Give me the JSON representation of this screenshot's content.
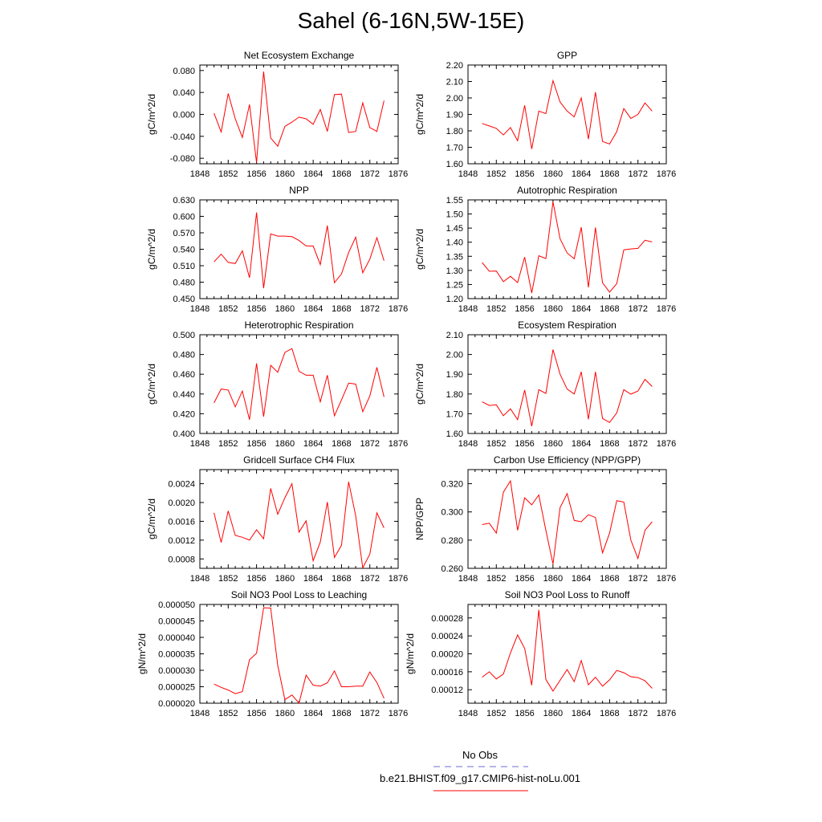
{
  "title": "Sahel (6-16N,5W-15E)",
  "legend": {
    "items": [
      {
        "label": "No Obs",
        "color": "#6b6bd6",
        "dash": "8,6"
      },
      {
        "label": "b.e21.BHIST.f09_g17.CMIP6-hist-noLu.001",
        "color": "#ff0000",
        "dash": ""
      }
    ]
  },
  "chart_data": [
    {
      "type": "line",
      "title": "Net Ecosystem Exchange",
      "ylabel": "gC/m^2/d",
      "xlim": [
        1848,
        1876
      ],
      "xticks": [
        "1848",
        "1852",
        "1856",
        "1860",
        "1864",
        "1868",
        "1872",
        "1876"
      ],
      "ylim": [
        -0.09,
        0.09
      ],
      "yticks": [
        "0.080",
        "0.040",
        "0.000",
        "-0.040",
        "-0.080"
      ],
      "ytick_values": [
        0.08,
        0.04,
        0.0,
        -0.04,
        -0.08
      ],
      "x": [
        1850,
        1851,
        1852,
        1853,
        1854,
        1855,
        1856,
        1857,
        1858,
        1859,
        1860,
        1861,
        1862,
        1863,
        1864,
        1865,
        1866,
        1867,
        1868,
        1869,
        1870,
        1871,
        1872,
        1873,
        1874
      ],
      "series": [
        {
          "color": "#ff0000",
          "values": [
            0.002,
            -0.032,
            0.038,
            -0.008,
            -0.042,
            0.018,
            -0.088,
            0.078,
            -0.043,
            -0.058,
            -0.022,
            -0.014,
            -0.005,
            -0.008,
            -0.018,
            0.009,
            -0.031,
            0.036,
            0.037,
            -0.033,
            -0.031,
            0.021,
            -0.024,
            -0.031,
            0.025
          ]
        }
      ]
    },
    {
      "type": "line",
      "title": "GPP",
      "ylabel": "gC/m^2/d",
      "xlim": [
        1848,
        1876
      ],
      "xticks": [
        "1848",
        "1852",
        "1856",
        "1860",
        "1864",
        "1868",
        "1872",
        "1876"
      ],
      "ylim": [
        1.6,
        2.2
      ],
      "yticks": [
        "2.20",
        "2.10",
        "2.00",
        "1.90",
        "1.80",
        "1.70",
        "1.60"
      ],
      "ytick_values": [
        2.2,
        2.1,
        2.0,
        1.9,
        1.8,
        1.7,
        1.6
      ],
      "x": [
        1850,
        1851,
        1852,
        1853,
        1854,
        1855,
        1856,
        1857,
        1858,
        1859,
        1860,
        1861,
        1862,
        1863,
        1864,
        1865,
        1866,
        1867,
        1868,
        1869,
        1870,
        1871,
        1872,
        1873,
        1874
      ],
      "series": [
        {
          "color": "#ff0000",
          "values": [
            1.845,
            1.83,
            1.815,
            1.775,
            1.82,
            1.74,
            1.955,
            1.69,
            1.92,
            1.905,
            2.105,
            1.975,
            1.92,
            1.885,
            2.0,
            1.75,
            2.035,
            1.735,
            1.72,
            1.795,
            1.935,
            1.875,
            1.9,
            1.97,
            1.92
          ]
        }
      ]
    },
    {
      "type": "line",
      "title": "NPP",
      "ylabel": "gC/m^2/d",
      "xlim": [
        1848,
        1876
      ],
      "xticks": [
        "1848",
        "1852",
        "1856",
        "1860",
        "1864",
        "1868",
        "1872",
        "1876"
      ],
      "ylim": [
        0.45,
        0.63
      ],
      "yticks": [
        "0.630",
        "0.600",
        "0.570",
        "0.540",
        "0.510",
        "0.480",
        "0.450"
      ],
      "ytick_values": [
        0.63,
        0.6,
        0.57,
        0.54,
        0.51,
        0.48,
        0.45
      ],
      "x": [
        1850,
        1851,
        1852,
        1853,
        1854,
        1855,
        1856,
        1857,
        1858,
        1859,
        1860,
        1861,
        1862,
        1863,
        1864,
        1865,
        1866,
        1867,
        1868,
        1869,
        1870,
        1871,
        1872,
        1873,
        1874
      ],
      "series": [
        {
          "color": "#ff0000",
          "values": [
            0.517,
            0.531,
            0.516,
            0.514,
            0.537,
            0.488,
            0.607,
            0.469,
            0.568,
            0.564,
            0.564,
            0.563,
            0.556,
            0.546,
            0.546,
            0.512,
            0.583,
            0.479,
            0.495,
            0.534,
            0.562,
            0.497,
            0.522,
            0.561,
            0.519
          ]
        }
      ]
    },
    {
      "type": "line",
      "title": "Autotrophic Respiration",
      "ylabel": "gC/m^2/d",
      "xlim": [
        1848,
        1876
      ],
      "xticks": [
        "1848",
        "1852",
        "1856",
        "1860",
        "1864",
        "1868",
        "1872",
        "1876"
      ],
      "ylim": [
        1.2,
        1.55
      ],
      "yticks": [
        "1.55",
        "1.50",
        "1.45",
        "1.40",
        "1.35",
        "1.30",
        "1.25",
        "1.20"
      ],
      "ytick_values": [
        1.55,
        1.5,
        1.45,
        1.4,
        1.35,
        1.3,
        1.25,
        1.2
      ],
      "x": [
        1850,
        1851,
        1852,
        1853,
        1854,
        1855,
        1856,
        1857,
        1858,
        1859,
        1860,
        1861,
        1862,
        1863,
        1864,
        1865,
        1866,
        1867,
        1868,
        1869,
        1870,
        1871,
        1872,
        1873,
        1874
      ],
      "series": [
        {
          "color": "#ff0000",
          "values": [
            1.328,
            1.297,
            1.298,
            1.26,
            1.279,
            1.257,
            1.347,
            1.22,
            1.352,
            1.342,
            1.543,
            1.412,
            1.362,
            1.341,
            1.453,
            1.24,
            1.452,
            1.256,
            1.223,
            1.253,
            1.373,
            1.376,
            1.378,
            1.407,
            1.401
          ]
        }
      ]
    },
    {
      "type": "line",
      "title": "Heterotrophic Respiration",
      "ylabel": "gC/m^2/d",
      "xlim": [
        1848,
        1876
      ],
      "xticks": [
        "1848",
        "1852",
        "1856",
        "1860",
        "1864",
        "1868",
        "1872",
        "1876"
      ],
      "ylim": [
        0.4,
        0.5
      ],
      "yticks": [
        "0.500",
        "0.480",
        "0.460",
        "0.440",
        "0.420",
        "0.400"
      ],
      "ytick_values": [
        0.5,
        0.48,
        0.46,
        0.44,
        0.42,
        0.4
      ],
      "x": [
        1850,
        1851,
        1852,
        1853,
        1854,
        1855,
        1856,
        1857,
        1858,
        1859,
        1860,
        1861,
        1862,
        1863,
        1864,
        1865,
        1866,
        1867,
        1868,
        1869,
        1870,
        1871,
        1872,
        1873,
        1874
      ],
      "series": [
        {
          "color": "#ff0000",
          "values": [
            0.431,
            0.445,
            0.444,
            0.427,
            0.443,
            0.414,
            0.471,
            0.417,
            0.469,
            0.462,
            0.482,
            0.486,
            0.463,
            0.459,
            0.459,
            0.432,
            0.459,
            0.418,
            0.434,
            0.451,
            0.45,
            0.422,
            0.438,
            0.467,
            0.437
          ]
        }
      ]
    },
    {
      "type": "line",
      "title": "Ecosystem Respiration",
      "ylabel": "gC/m^2/d",
      "xlim": [
        1848,
        1876
      ],
      "xticks": [
        "1848",
        "1852",
        "1856",
        "1860",
        "1864",
        "1868",
        "1872",
        "1876"
      ],
      "ylim": [
        1.6,
        2.1
      ],
      "yticks": [
        "2.10",
        "2.00",
        "1.90",
        "1.80",
        "1.70",
        "1.60"
      ],
      "ytick_values": [
        2.1,
        2.0,
        1.9,
        1.8,
        1.7,
        1.6
      ],
      "x": [
        1850,
        1851,
        1852,
        1853,
        1854,
        1855,
        1856,
        1857,
        1858,
        1859,
        1860,
        1861,
        1862,
        1863,
        1864,
        1865,
        1866,
        1867,
        1868,
        1869,
        1870,
        1871,
        1872,
        1873,
        1874
      ],
      "series": [
        {
          "color": "#ff0000",
          "values": [
            1.76,
            1.742,
            1.745,
            1.69,
            1.725,
            1.67,
            1.82,
            1.637,
            1.822,
            1.803,
            2.025,
            1.9,
            1.825,
            1.8,
            1.912,
            1.672,
            1.912,
            1.676,
            1.656,
            1.704,
            1.822,
            1.799,
            1.815,
            1.874,
            1.838
          ]
        }
      ]
    },
    {
      "type": "line",
      "title": "Gridcell Surface CH4 Flux",
      "ylabel": "gC/m^2/d",
      "xlim": [
        1848,
        1876
      ],
      "xticks": [
        "1848",
        "1852",
        "1856",
        "1860",
        "1864",
        "1868",
        "1872",
        "1876"
      ],
      "ylim": [
        0.0006,
        0.0027
      ],
      "yticks": [
        "0.0024",
        "0.0020",
        "0.0016",
        "0.0012",
        "0.0008"
      ],
      "ytick_values": [
        0.0024,
        0.002,
        0.0016,
        0.0012,
        0.0008
      ],
      "x": [
        1850,
        1851,
        1852,
        1853,
        1854,
        1855,
        1856,
        1857,
        1858,
        1859,
        1860,
        1861,
        1862,
        1863,
        1864,
        1865,
        1866,
        1867,
        1868,
        1869,
        1870,
        1871,
        1872,
        1873,
        1874
      ],
      "series": [
        {
          "color": "#ff0000",
          "values": [
            0.00178,
            0.00115,
            0.00182,
            0.0013,
            0.00126,
            0.0012,
            0.00142,
            0.00123,
            0.0023,
            0.00175,
            0.0021,
            0.0024,
            0.00137,
            0.00161,
            0.00076,
            0.00116,
            0.00201,
            0.00083,
            0.00109,
            0.00244,
            0.00172,
            0.00061,
            0.0009,
            0.00178,
            0.00146
          ]
        }
      ]
    },
    {
      "type": "line",
      "title": "Carbon Use Efficiency (NPP/GPP)",
      "ylabel": "NPP/GPP",
      "xlim": [
        1848,
        1876
      ],
      "xticks": [
        "1848",
        "1852",
        "1856",
        "1860",
        "1864",
        "1868",
        "1872",
        "1876"
      ],
      "ylim": [
        0.26,
        0.33
      ],
      "yticks": [
        "0.320",
        "0.300",
        "0.280",
        "0.260"
      ],
      "ytick_values": [
        0.32,
        0.3,
        0.28,
        0.26
      ],
      "x": [
        1850,
        1851,
        1852,
        1853,
        1854,
        1855,
        1856,
        1857,
        1858,
        1859,
        1860,
        1861,
        1862,
        1863,
        1864,
        1865,
        1866,
        1867,
        1868,
        1869,
        1870,
        1871,
        1872,
        1873,
        1874
      ],
      "series": [
        {
          "color": "#ff0000",
          "values": [
            0.291,
            0.292,
            0.285,
            0.314,
            0.322,
            0.287,
            0.31,
            0.305,
            0.312,
            0.287,
            0.263,
            0.303,
            0.313,
            0.294,
            0.293,
            0.298,
            0.296,
            0.271,
            0.285,
            0.308,
            0.307,
            0.28,
            0.267,
            0.287,
            0.293
          ]
        }
      ]
    },
    {
      "type": "line",
      "title": "Soil NO3 Pool Loss to Leaching",
      "ylabel": "gN/m^2/d",
      "xlim": [
        1848,
        1876
      ],
      "xticks": [
        "1848",
        "1852",
        "1856",
        "1860",
        "1864",
        "1868",
        "1872",
        "1876"
      ],
      "ylim": [
        2e-05,
        5e-05
      ],
      "yticks": [
        "0.000050",
        "0.000045",
        "0.000040",
        "0.000035",
        "0.000030",
        "0.000025",
        "0.000020"
      ],
      "ytick_values": [
        5e-05,
        4.5e-05,
        4e-05,
        3.5e-05,
        3e-05,
        2.5e-05,
        2e-05
      ],
      "x": [
        1850,
        1851,
        1852,
        1853,
        1854,
        1855,
        1856,
        1857,
        1858,
        1859,
        1860,
        1861,
        1862,
        1863,
        1864,
        1865,
        1866,
        1867,
        1868,
        1869,
        1870,
        1871,
        1872,
        1873,
        1874
      ],
      "series": [
        {
          "color": "#ff0000",
          "values": [
            2.58e-05,
            2.48e-05,
            2.4e-05,
            2.29e-05,
            2.35e-05,
            3.32e-05,
            3.52e-05,
            4.9e-05,
            4.89e-05,
            3.15e-05,
            2.11e-05,
            2.25e-05,
            2e-05,
            2.85e-05,
            2.55e-05,
            2.52e-05,
            2.62e-05,
            2.98e-05,
            2.5e-05,
            2.5e-05,
            2.52e-05,
            2.52e-05,
            2.95e-05,
            2.63e-05,
            2.15e-05
          ]
        }
      ]
    },
    {
      "type": "line",
      "title": "Soil NO3 Pool Loss to Runoff",
      "ylabel": "gN/m^2/d",
      "xlim": [
        1848,
        1876
      ],
      "xticks": [
        "1848",
        "1852",
        "1856",
        "1860",
        "1864",
        "1868",
        "1872",
        "1876"
      ],
      "ylim": [
        9e-05,
        0.00031
      ],
      "yticks": [
        "0.00028",
        "0.00024",
        "0.00020",
        "0.00016",
        "0.00012"
      ],
      "ytick_values": [
        0.00028,
        0.00024,
        0.0002,
        0.00016,
        0.00012
      ],
      "x": [
        1850,
        1851,
        1852,
        1853,
        1854,
        1855,
        1856,
        1857,
        1858,
        1859,
        1860,
        1861,
        1862,
        1863,
        1864,
        1865,
        1866,
        1867,
        1868,
        1869,
        1870,
        1871,
        1872,
        1873,
        1874
      ],
      "series": [
        {
          "color": "#ff0000",
          "values": [
            0.000148,
            0.00016,
            0.000144,
            0.000155,
            0.000202,
            0.000242,
            0.000212,
            0.00013,
            0.000298,
            0.000143,
            0.000117,
            0.000141,
            0.000165,
            0.000138,
            0.000185,
            0.000131,
            0.000148,
            0.000128,
            0.000142,
            0.000163,
            0.000158,
            0.000149,
            0.000147,
            0.00014,
            0.000123
          ]
        }
      ]
    }
  ]
}
